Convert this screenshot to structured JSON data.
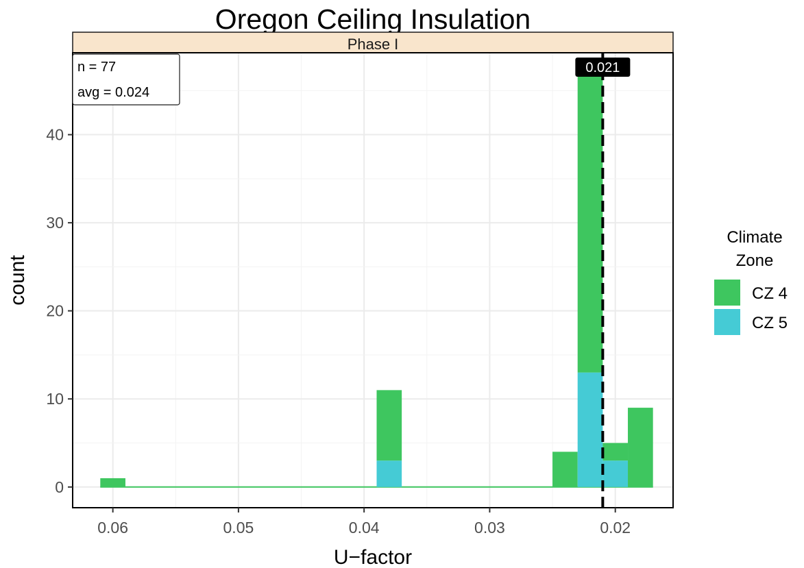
{
  "chart_data": {
    "type": "bar",
    "title": "Oregon Ceiling Insulation",
    "facet": "Phase I",
    "xlabel": "U−factor",
    "ylabel": "count",
    "x_reversed": true,
    "xlim": [
      0.0154,
      0.0632
    ],
    "ylim": [
      -2.35,
      49.3
    ],
    "x_ticks": [
      0.06,
      0.05,
      0.04,
      0.03,
      0.02
    ],
    "x_tick_labels": [
      "0.06",
      "0.05",
      "0.04",
      "0.03",
      "0.02"
    ],
    "y_ticks": [
      0,
      10,
      20,
      30,
      40
    ],
    "y_tick_labels": [
      "0",
      "10",
      "20",
      "30",
      "40"
    ],
    "grid": true,
    "legend_position": "right",
    "legend": {
      "title_lines": [
        "Climate",
        "Zone"
      ],
      "items": [
        {
          "name": "CZ 4",
          "color": "#3ec65f"
        },
        {
          "name": "CZ 5",
          "color": "#45cbd5"
        }
      ]
    },
    "bins": [
      {
        "x_left": 0.061,
        "x_right": 0.059,
        "cz4": 1,
        "cz5": 0
      },
      {
        "x_left": 0.039,
        "x_right": 0.037,
        "cz4": 8,
        "cz5": 3
      },
      {
        "x_left": 0.025,
        "x_right": 0.023,
        "cz4": 4,
        "cz5": 0
      },
      {
        "x_left": 0.023,
        "x_right": 0.021,
        "cz4": 34,
        "cz5": 13
      },
      {
        "x_left": 0.021,
        "x_right": 0.019,
        "cz4": 2,
        "cz5": 3
      },
      {
        "x_left": 0.019,
        "x_right": 0.017,
        "cz4": 9,
        "cz5": 0
      }
    ],
    "annotations": {
      "n_label": "n = 77",
      "avg_label": "avg = 0.024",
      "median_value": 0.021,
      "median_label": "0.021"
    }
  }
}
